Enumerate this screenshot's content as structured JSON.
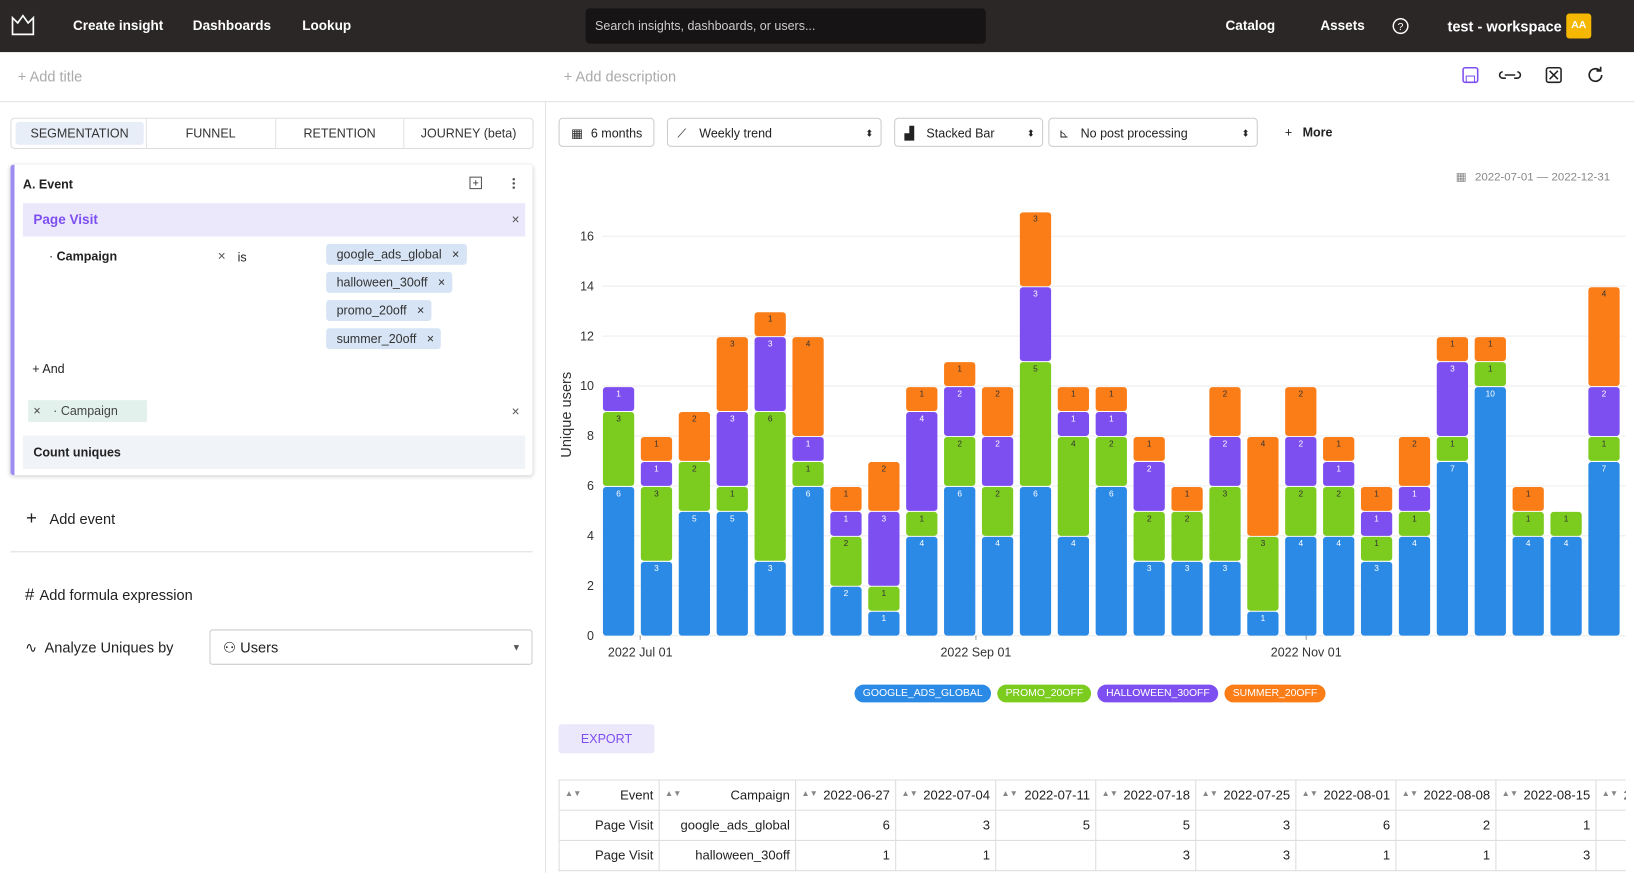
{
  "nav": {
    "items": [
      "Create insight",
      "Dashboards",
      "Lookup"
    ],
    "search_placeholder": "Search insights, dashboards, or users...",
    "right": [
      "Catalog",
      "Assets"
    ],
    "workspace": "test - workspace",
    "avatar": "AA"
  },
  "header": {
    "add_title": "+ Add title",
    "add_description": "+ Add description"
  },
  "tabs": [
    "SEGMENTATION",
    "FUNNEL",
    "RETENTION",
    "JOURNEY (beta)"
  ],
  "query": {
    "label": "A.",
    "title": "Event",
    "event": "Page Visit",
    "filter_property": "Campaign",
    "operator": "is",
    "filter_values": [
      "google_ads_global",
      "halloween_30off",
      "promo_20off",
      "summer_20off"
    ],
    "and": "+ And",
    "breakdown": "Campaign",
    "measure": "Count uniques",
    "add_event": "Add event",
    "add_formula": "Add formula expression",
    "analyze_label": "Analyze Uniques by",
    "analyze_value": "Users"
  },
  "controls": {
    "range": "6 months",
    "trend": "Weekly trend",
    "chart_type": "Stacked Bar",
    "post": "No post processing",
    "more": "More",
    "date_range": "2022-07-01 — 2022-12-31",
    "export": "EXPORT"
  },
  "chart_data": {
    "type": "stacked-bar",
    "y_label": "Unique users",
    "x": [
      "2022-06-27",
      "2022-07-04",
      "2022-07-11",
      "2022-07-18",
      "2022-07-25",
      "2022-08-01",
      "2022-08-08",
      "2022-08-15",
      "2022-08-22",
      "2022-08-29",
      "2022-09-05",
      "2022-09-12",
      "2022-09-19",
      "2022-09-26",
      "2022-10-03",
      "2022-10-10",
      "2022-10-17",
      "2022-10-24",
      "2022-10-31",
      "2022-11-07",
      "2022-11-14",
      "2022-11-21",
      "2022-11-28",
      "2022-12-05",
      "2022-12-12",
      "2022-12-19",
      "2022-12-26"
    ],
    "series": [
      {
        "name": "GOOGLE_ADS_GLOBAL",
        "color": "#2b8ae6",
        "values": [
          6,
          3,
          5,
          5,
          3,
          6,
          2,
          1,
          4,
          6,
          4,
          6,
          4,
          6,
          3,
          3,
          3,
          1,
          4,
          4,
          3,
          4,
          7,
          10,
          4,
          4,
          7
        ]
      },
      {
        "name": "PROMO_20OFF",
        "color": "#7ccb1f",
        "values": [
          3,
          3,
          2,
          1,
          6,
          1,
          2,
          1,
          1,
          2,
          2,
          5,
          4,
          2,
          2,
          2,
          3,
          3,
          2,
          2,
          1,
          1,
          1,
          1,
          1,
          1,
          1
        ]
      },
      {
        "name": "HALLOWEEN_30OFF",
        "color": "#7d4ff0",
        "values": [
          1,
          1,
          null,
          3,
          3,
          1,
          1,
          3,
          4,
          2,
          2,
          3,
          1,
          1,
          2,
          null,
          2,
          null,
          2,
          1,
          1,
          1,
          3,
          null,
          null,
          null,
          2
        ]
      },
      {
        "name": "SUMMER_20OFF",
        "color": "#fb7d18",
        "values": [
          null,
          1,
          2,
          3,
          1,
          4,
          1,
          2,
          1,
          1,
          2,
          3,
          1,
          1,
          1,
          1,
          2,
          4,
          2,
          1,
          1,
          2,
          1,
          1,
          1,
          null,
          4
        ]
      }
    ],
    "xlim": [
      "2022-06-24",
      "2022-12-30"
    ],
    "xticks": [
      {
        "value": "2022-07-01",
        "label": "2022 Jul 01"
      },
      {
        "value": "2022-09-01",
        "label": "2022 Sep 01"
      },
      {
        "value": "2022-11-01",
        "label": "2022 Nov 01"
      }
    ],
    "ylim": [
      0,
      17.7
    ],
    "yticks": [
      0,
      2,
      4,
      6,
      8,
      10,
      12,
      14,
      16
    ],
    "grid": true
  },
  "table": {
    "headers": [
      "Event",
      "Campaign"
    ],
    "rows": [
      [
        "Page Visit",
        "google_ads_global"
      ],
      [
        "Page Visit",
        "halloween_30off"
      ]
    ]
  }
}
